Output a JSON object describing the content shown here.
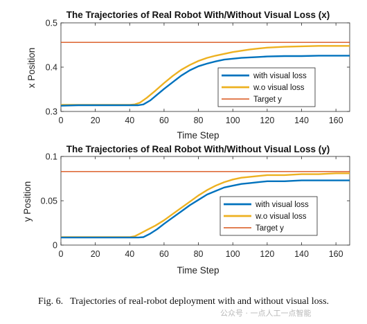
{
  "caption": {
    "label": "Fig. 6.",
    "text": "Trajectories of real-robot deployment with and without visual loss."
  },
  "watermark": "公众号 · 一点人工一点智能",
  "colors": {
    "with_visual_loss": "#0072BD",
    "wo_visual_loss": "#EDB120",
    "target": "#D95319"
  },
  "chart_data": [
    {
      "type": "line",
      "title": "The Trajectories of Real Robot With/Without Visual Loss (x)",
      "xlabel": "Time Step",
      "ylabel": "x Position",
      "xlim": [
        0,
        168
      ],
      "ylim": [
        0.3,
        0.5
      ],
      "xticks": [
        "0",
        "20",
        "40",
        "60",
        "80",
        "100",
        "120",
        "140",
        "160"
      ],
      "yticks": [
        "0.3",
        "0.4",
        "0.5"
      ],
      "grid": false,
      "legend_position": "center-right",
      "series": [
        {
          "name": "with visual loss",
          "x": [
            0,
            10,
            20,
            30,
            40,
            45,
            48,
            52,
            56,
            60,
            65,
            70,
            75,
            80,
            85,
            90,
            95,
            100,
            105,
            110,
            115,
            120,
            130,
            140,
            150,
            160,
            168
          ],
          "y": [
            0.313,
            0.314,
            0.314,
            0.314,
            0.314,
            0.314,
            0.316,
            0.325,
            0.338,
            0.351,
            0.366,
            0.381,
            0.393,
            0.402,
            0.408,
            0.413,
            0.417,
            0.419,
            0.421,
            0.422,
            0.423,
            0.424,
            0.425,
            0.425,
            0.426,
            0.426,
            0.426
          ]
        },
        {
          "name": "w.o visual loss",
          "x": [
            0,
            10,
            20,
            30,
            40,
            43,
            46,
            50,
            55,
            60,
            65,
            70,
            75,
            80,
            85,
            90,
            95,
            100,
            105,
            110,
            115,
            120,
            130,
            140,
            150,
            160,
            168
          ],
          "y": [
            0.315,
            0.315,
            0.315,
            0.315,
            0.315,
            0.316,
            0.32,
            0.331,
            0.347,
            0.364,
            0.38,
            0.394,
            0.405,
            0.414,
            0.421,
            0.426,
            0.43,
            0.434,
            0.437,
            0.44,
            0.442,
            0.444,
            0.446,
            0.447,
            0.448,
            0.448,
            0.448
          ]
        },
        {
          "name": "Target y",
          "x": [
            0,
            168
          ],
          "y": [
            0.456,
            0.456
          ]
        }
      ]
    },
    {
      "type": "line",
      "title": "The Trajectories of Real Robot With/Without Visual Loss (y)",
      "xlabel": "Time Step",
      "ylabel": "y Position",
      "xlim": [
        0,
        168
      ],
      "ylim": [
        0,
        0.1
      ],
      "xticks": [
        "0",
        "20",
        "40",
        "60",
        "80",
        "100",
        "120",
        "140",
        "160"
      ],
      "yticks": [
        "0",
        "0.05",
        "0.1"
      ],
      "grid": false,
      "legend_position": "center-right",
      "series": [
        {
          "name": "with visual loss",
          "x": [
            0,
            10,
            20,
            30,
            40,
            45,
            48,
            52,
            56,
            60,
            65,
            70,
            75,
            80,
            85,
            90,
            95,
            100,
            105,
            110,
            115,
            120,
            130,
            140,
            150,
            160,
            168
          ],
          "y": [
            0.0085,
            0.0085,
            0.0085,
            0.0085,
            0.0085,
            0.0085,
            0.009,
            0.013,
            0.018,
            0.024,
            0.031,
            0.038,
            0.045,
            0.051,
            0.057,
            0.061,
            0.065,
            0.067,
            0.069,
            0.07,
            0.071,
            0.072,
            0.072,
            0.073,
            0.073,
            0.073,
            0.073
          ]
        },
        {
          "name": "w.o visual loss",
          "x": [
            0,
            10,
            20,
            30,
            40,
            43,
            46,
            50,
            55,
            60,
            65,
            70,
            75,
            80,
            85,
            90,
            95,
            100,
            105,
            110,
            115,
            120,
            130,
            140,
            150,
            160,
            168
          ],
          "y": [
            0.009,
            0.009,
            0.009,
            0.009,
            0.009,
            0.01,
            0.013,
            0.017,
            0.022,
            0.028,
            0.035,
            0.042,
            0.049,
            0.056,
            0.062,
            0.067,
            0.071,
            0.074,
            0.076,
            0.077,
            0.078,
            0.079,
            0.079,
            0.08,
            0.08,
            0.081,
            0.081
          ]
        },
        {
          "name": "Target y",
          "x": [
            0,
            168
          ],
          "y": [
            0.083,
            0.083
          ]
        }
      ]
    }
  ]
}
